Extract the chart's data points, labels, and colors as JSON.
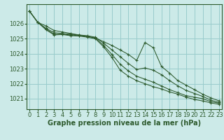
{
  "background_color": "#cceae8",
  "grid_color": "#99cccc",
  "line_color": "#2d5a2d",
  "marker_color": "#2d5a2d",
  "xlabel": "Graphe pression niveau de la mer (hPa)",
  "xlabel_fontsize": 7,
  "tick_fontsize": 6,
  "ylim": [
    1020.3,
    1027.3
  ],
  "xlim": [
    -0.3,
    23.3
  ],
  "yticks": [
    1021,
    1022,
    1023,
    1024,
    1025,
    1026
  ],
  "xticks": [
    0,
    1,
    2,
    3,
    4,
    5,
    6,
    7,
    8,
    9,
    10,
    11,
    12,
    13,
    14,
    15,
    16,
    17,
    18,
    19,
    20,
    21,
    22,
    23
  ],
  "series": [
    [
      1026.85,
      1026.1,
      1025.85,
      1025.55,
      1025.45,
      1025.35,
      1025.25,
      1025.15,
      1025.05,
      1024.8,
      1024.55,
      1024.25,
      1023.95,
      1023.55,
      1024.75,
      1024.4,
      1023.15,
      1022.7,
      1022.2,
      1021.9,
      1021.6,
      1021.3,
      1021.05,
      1020.85
    ],
    [
      1026.85,
      1026.1,
      1025.7,
      1025.4,
      1025.35,
      1025.3,
      1025.25,
      1025.2,
      1025.1,
      1024.7,
      1024.25,
      1023.8,
      1023.35,
      1022.95,
      1023.05,
      1022.9,
      1022.6,
      1022.2,
      1021.85,
      1021.55,
      1021.35,
      1021.15,
      1020.9,
      1020.75
    ],
    [
      1026.85,
      1026.1,
      1025.65,
      1025.3,
      1025.3,
      1025.25,
      1025.2,
      1025.15,
      1025.05,
      1024.55,
      1023.95,
      1023.3,
      1022.85,
      1022.5,
      1022.3,
      1022.1,
      1021.85,
      1021.6,
      1021.4,
      1021.2,
      1021.1,
      1021.0,
      1020.8,
      1020.7
    ],
    [
      1026.85,
      1026.1,
      1025.6,
      1025.25,
      1025.28,
      1025.2,
      1025.18,
      1025.1,
      1025.0,
      1024.45,
      1023.75,
      1022.9,
      1022.5,
      1022.2,
      1022.0,
      1021.8,
      1021.65,
      1021.45,
      1021.3,
      1021.1,
      1020.95,
      1020.85,
      1020.72,
      1020.62
    ]
  ]
}
